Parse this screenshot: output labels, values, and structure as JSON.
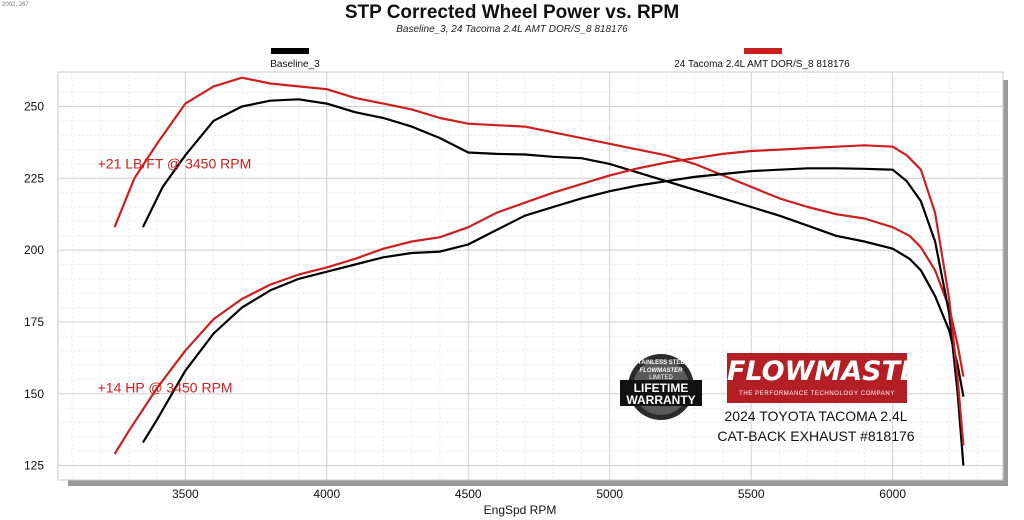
{
  "corner_code": "2002, 267",
  "chart_data": {
    "type": "line",
    "title": "STP Corrected Wheel Power vs. RPM",
    "subtitle": "Baseline_3, 24 Tacoma 2.4L AMT DOR/S_8 818176",
    "xlabel": "EngSpd  RPM",
    "ylabel": "",
    "xlim": [
      3050,
      6390
    ],
    "ylim": [
      120,
      262
    ],
    "x_ticks": [
      "3500",
      "4000",
      "4500",
      "5000",
      "5500",
      "6000"
    ],
    "y_ticks": [
      "125",
      "150",
      "175",
      "200",
      "225",
      "250"
    ],
    "grid": true,
    "legend_placement": "top",
    "series": [
      {
        "name": "Baseline_3",
        "color": "#000000",
        "metric": "torque",
        "x": [
          3350,
          3420,
          3500,
          3600,
          3700,
          3800,
          3900,
          4000,
          4100,
          4200,
          4300,
          4400,
          4500,
          4600,
          4700,
          4800,
          4900,
          5000,
          5100,
          5200,
          5300,
          5400,
          5500,
          5600,
          5700,
          5800,
          5900,
          6000,
          6060,
          6100,
          6150,
          6200,
          6230,
          6250
        ],
        "y": [
          208,
          222,
          233,
          245,
          250,
          252,
          252.5,
          251,
          248,
          246,
          243,
          239,
          234,
          233.5,
          233.3,
          232.5,
          232,
          230,
          227,
          224,
          221,
          218,
          215,
          212,
          208.5,
          205,
          203,
          200.5,
          197,
          193,
          184,
          172,
          160,
          149
        ]
      },
      {
        "name": "24 Tacoma 2.4L AMT DOR/S_8 818176",
        "color": "#cc1f1f",
        "metric": "torque",
        "x": [
          3250,
          3320,
          3400,
          3500,
          3600,
          3700,
          3800,
          3900,
          4000,
          4100,
          4200,
          4300,
          4400,
          4500,
          4600,
          4700,
          4800,
          4900,
          5000,
          5100,
          5200,
          5300,
          5400,
          5500,
          5600,
          5700,
          5800,
          5900,
          6000,
          6060,
          6100,
          6150,
          6200,
          6230,
          6250
        ],
        "y": [
          208,
          225,
          237,
          251,
          257,
          260,
          258,
          257,
          256,
          253,
          251,
          249,
          246,
          244,
          243.5,
          243,
          241,
          239,
          237,
          235,
          233,
          230,
          226,
          222,
          218,
          215,
          212.5,
          211,
          208,
          205,
          201,
          193,
          180,
          167,
          156
        ]
      },
      {
        "name": "Baseline_3",
        "color": "#000000",
        "metric": "power",
        "x": [
          3350,
          3400,
          3500,
          3600,
          3700,
          3800,
          3900,
          4000,
          4100,
          4200,
          4300,
          4400,
          4500,
          4600,
          4700,
          4800,
          4900,
          5000,
          5100,
          5200,
          5300,
          5400,
          5500,
          5600,
          5700,
          5800,
          5900,
          6000,
          6050,
          6100,
          6150,
          6200,
          6230,
          6250
        ],
        "y": [
          133,
          141,
          158,
          171,
          180,
          186,
          190,
          192.5,
          195,
          197.5,
          199,
          199.5,
          202,
          207,
          212,
          215,
          218,
          220.5,
          222.5,
          224,
          225.5,
          226.5,
          227.5,
          228,
          228.5,
          228.5,
          228.3,
          228,
          224,
          217,
          203,
          178,
          150,
          125
        ]
      },
      {
        "name": "24 Tacoma 2.4L AMT DOR/S_8 818176",
        "color": "#cc1f1f",
        "metric": "power",
        "x": [
          3250,
          3300,
          3400,
          3500,
          3600,
          3700,
          3800,
          3900,
          4000,
          4100,
          4200,
          4300,
          4400,
          4500,
          4600,
          4700,
          4800,
          4900,
          5000,
          5100,
          5200,
          5300,
          5400,
          5500,
          5600,
          5700,
          5800,
          5900,
          6000,
          6050,
          6100,
          6150,
          6200,
          6230,
          6250
        ],
        "y": [
          129,
          137,
          152,
          165,
          176,
          183,
          188,
          191.5,
          194,
          197,
          200.5,
          203,
          204.5,
          208,
          213,
          216.5,
          220,
          223,
          226,
          228.5,
          230.5,
          232,
          233.5,
          234.5,
          235,
          235.5,
          236,
          236.5,
          236,
          233,
          228,
          213,
          183,
          155,
          132
        ]
      }
    ],
    "annotations": [
      {
        "text": "+21 LB/FT @ 3450 RPM",
        "x": 3190,
        "y": 228.5,
        "color": "#cc1f1f"
      },
      {
        "text": "+14 HP @ 3450 RPM",
        "x": 3190,
        "y": 150.5,
        "color": "#cc1f1f"
      }
    ]
  },
  "branding": {
    "logo_text": "FLOWMASTER",
    "logo_tagline": "THE PERFORMANCE TECHNOLOGY COMPANY",
    "badge": {
      "arc_text": "STAINLESS STEEL",
      "brand": "FLOWMASTER",
      "limited": "LIMITED",
      "line1": "LIFETIME",
      "line2": "WARRANTY"
    },
    "caption_line1": "2024 TOYOTA TACOMA 2.4L",
    "caption_line2": "CAT-BACK EXHAUST #818176"
  },
  "colors": {
    "baseline": "#000000",
    "flowmaster": "#cc1f1f",
    "logo_red": "#b31f24",
    "grid": "#dddddd"
  }
}
